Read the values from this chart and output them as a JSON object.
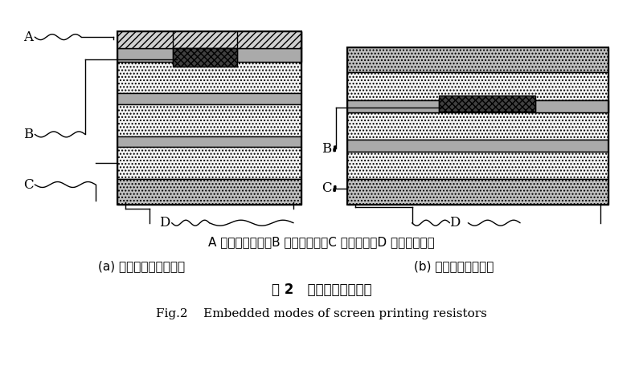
{
  "bg_color": "#ffffff",
  "line_color": "#000000",
  "fig_width": 8.0,
  "fig_height": 4.61,
  "caption_line1": "A 为阻焊油墨层；B 为网印电阻；C 为介质层；D 为铜面图形层",
  "caption_line2a": "(a) 外层电路板内埋电阻",
  "caption_line2b": "(b) 内层板芯内埋电阻",
  "caption_line3": "图 2   网印电阻内埋方式",
  "caption_line4": "Fig.2    Embedded modes of screen printing resistors"
}
